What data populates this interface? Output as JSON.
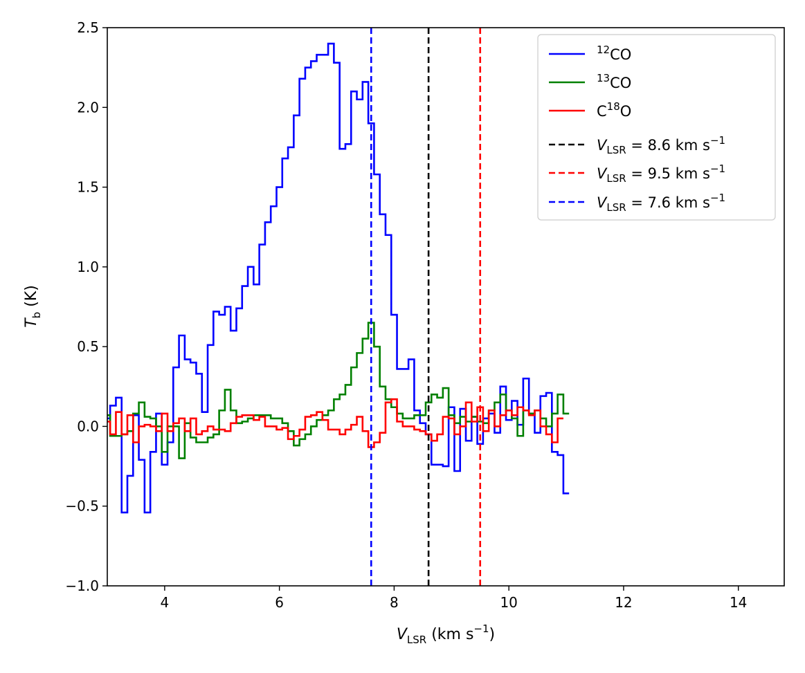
{
  "chart_data": {
    "type": "line",
    "drawstyle": "steps-mid",
    "xlabel": {
      "var": "V",
      "sub": "LSR",
      "unit_prefix": " (km s",
      "exp": "−1",
      "unit_suffix": ")"
    },
    "ylabel": {
      "var": "T",
      "sub": "b",
      "unit": " (K)"
    },
    "xlim": [
      3.0,
      14.8
    ],
    "ylim": [
      -1.0,
      2.5
    ],
    "xticks": [
      4,
      6,
      8,
      10,
      12,
      14
    ],
    "yticks": [
      -1.0,
      -0.5,
      0.0,
      0.5,
      1.0,
      1.5,
      2.0,
      2.5
    ],
    "xtick_labels": [
      "4",
      "6",
      "8",
      "10",
      "12",
      "14"
    ],
    "ytick_labels": [
      "−1.0",
      "−0.5",
      "0.0",
      "0.5",
      "1.0",
      "1.5",
      "2.0",
      "2.5"
    ],
    "legend_position": "top-right",
    "step": 0.1,
    "x_start": 3.0,
    "series": [
      {
        "name": "12CO",
        "label_sup": "12",
        "label_main": "CO",
        "color": "#0000ff",
        "values": [
          0.05,
          0.13,
          0.18,
          -0.54,
          -0.31,
          0.07,
          -0.21,
          -0.54,
          -0.16,
          0.08,
          -0.24,
          -0.1,
          0.37,
          0.57,
          0.42,
          0.4,
          0.33,
          0.09,
          0.51,
          0.72,
          0.7,
          0.75,
          0.6,
          0.74,
          0.88,
          1.0,
          0.89,
          1.14,
          1.28,
          1.38,
          1.5,
          1.68,
          1.75,
          1.95,
          2.18,
          2.25,
          2.29,
          2.33,
          2.33,
          2.4,
          2.28,
          1.74,
          1.77,
          2.1,
          2.05,
          2.16,
          1.9,
          1.58,
          1.33,
          1.2,
          0.7,
          0.36,
          0.36,
          0.42,
          0.1,
          0.02,
          -0.05,
          -0.24,
          -0.24,
          -0.25,
          0.12,
          -0.28,
          0.11,
          -0.09,
          0.06,
          -0.11,
          0.05,
          0.08,
          -0.04,
          0.25,
          0.04,
          0.16,
          0.01,
          0.3,
          0.08,
          -0.04,
          0.19,
          0.21,
          -0.16,
          -0.18,
          -0.42
        ]
      },
      {
        "name": "13CO",
        "label_sup": "13",
        "label_main": "CO",
        "color": "#008000",
        "values": [
          0.07,
          -0.06,
          -0.06,
          -0.05,
          -0.03,
          0.08,
          0.15,
          0.06,
          0.05,
          0.0,
          -0.16,
          0.0,
          0.0,
          -0.2,
          0.02,
          -0.07,
          -0.1,
          -0.1,
          -0.07,
          -0.05,
          0.1,
          0.23,
          0.1,
          0.02,
          0.03,
          0.05,
          0.07,
          0.07,
          0.07,
          0.05,
          0.05,
          0.02,
          -0.03,
          -0.12,
          -0.08,
          -0.05,
          0.0,
          0.04,
          0.07,
          0.1,
          0.17,
          0.2,
          0.26,
          0.37,
          0.46,
          0.55,
          0.65,
          0.5,
          0.25,
          0.17,
          0.12,
          0.08,
          0.05,
          0.05,
          0.07,
          0.07,
          0.15,
          0.2,
          0.18,
          0.24,
          0.07,
          0.02,
          0.06,
          0.03,
          0.06,
          0.03,
          0.02,
          0.1,
          0.15,
          0.2,
          0.1,
          0.05,
          -0.06,
          0.1,
          0.08,
          0.1,
          0.05,
          0.0,
          0.08,
          0.2,
          0.08
        ]
      },
      {
        "name": "C18O",
        "label_pre": "C",
        "label_sup": "18",
        "label_main": "O",
        "color": "#ff0000",
        "values": [
          0.03,
          -0.05,
          0.09,
          -0.05,
          0.07,
          -0.1,
          0.0,
          0.01,
          0.0,
          -0.03,
          0.08,
          -0.03,
          0.02,
          0.05,
          -0.03,
          0.05,
          -0.05,
          -0.03,
          0.0,
          -0.02,
          -0.02,
          -0.03,
          0.02,
          0.06,
          0.07,
          0.07,
          0.04,
          0.06,
          0.0,
          0.0,
          -0.02,
          -0.01,
          -0.08,
          -0.06,
          -0.02,
          0.06,
          0.07,
          0.09,
          0.04,
          -0.02,
          -0.02,
          -0.05,
          -0.02,
          0.01,
          0.06,
          -0.03,
          -0.13,
          -0.1,
          -0.04,
          0.15,
          0.17,
          0.03,
          0.0,
          0.0,
          -0.02,
          -0.03,
          -0.05,
          -0.09,
          -0.05,
          0.06,
          0.05,
          -0.05,
          0.0,
          0.15,
          0.03,
          0.12,
          -0.03,
          0.1,
          0.0,
          0.07,
          0.1,
          0.07,
          0.12,
          0.1,
          0.07,
          0.1,
          0.0,
          -0.05,
          -0.1,
          0.05
        ]
      }
    ],
    "vlines": [
      {
        "name": "vlsr-8.6",
        "x": 8.6,
        "color": "#000000",
        "value_label": "8.6",
        "eq": " = ",
        "unit": "  km s",
        "exp": "−1"
      },
      {
        "name": "vlsr-9.5",
        "x": 9.5,
        "color": "#ff0000",
        "value_label": "9.5",
        "eq": " = ",
        "unit": "  km s",
        "exp": "−1"
      },
      {
        "name": "vlsr-7.6",
        "x": 7.6,
        "color": "#0000ff",
        "value_label": "7.6",
        "eq": " = ",
        "unit": "  km s",
        "exp": "−1"
      }
    ]
  }
}
